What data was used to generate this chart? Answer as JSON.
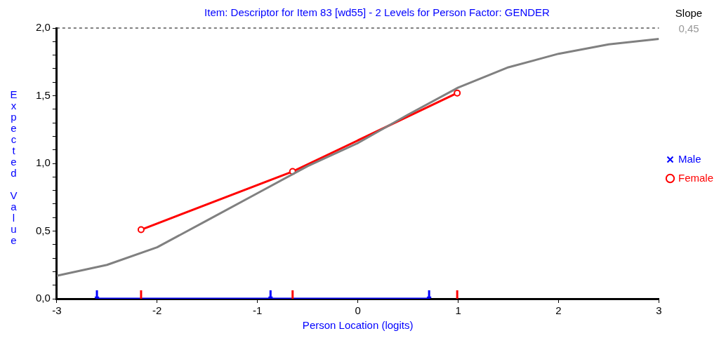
{
  "chart_data": {
    "type": "line",
    "title": "Item: Descriptor for Item 83 [wd55] - 2 Levels for Person Factor: GENDER",
    "xlabel": "Person Location (logits)",
    "ylabel": "Expected Value",
    "annotations": [
      "Slope",
      "0,45"
    ],
    "xlim": [
      -3,
      3
    ],
    "xticks": [
      -3,
      -2,
      -1,
      0,
      1,
      2,
      3
    ],
    "ylim": [
      0,
      2
    ],
    "yticks": [
      {
        "value": 0,
        "label": "0,0"
      },
      {
        "value": 0.1,
        "label": null
      },
      {
        "value": 0.2,
        "label": null
      },
      {
        "value": 0.3,
        "label": null
      },
      {
        "value": 0.4,
        "label": null
      },
      {
        "value": 0.5,
        "label": "0,5"
      },
      {
        "value": 0.6,
        "label": null
      },
      {
        "value": 0.7,
        "label": null
      },
      {
        "value": 0.8,
        "label": null
      },
      {
        "value": 0.9,
        "label": null
      },
      {
        "value": 1,
        "label": "1,0"
      },
      {
        "value": 1.1,
        "label": null
      },
      {
        "value": 1.2,
        "label": null
      },
      {
        "value": 1.3,
        "label": null
      },
      {
        "value": 1.4,
        "label": null
      },
      {
        "value": 1.5,
        "label": "1,5"
      },
      {
        "value": 1.6,
        "label": null
      },
      {
        "value": 1.7,
        "label": null
      },
      {
        "value": 1.8,
        "label": null
      },
      {
        "value": 1.9,
        "label": null
      },
      {
        "value": 2,
        "label": "2,0"
      }
    ],
    "grid": false,
    "legend": "right",
    "ref_lines": [
      {
        "axis": "y",
        "value": 2,
        "color": "#000000",
        "line_style": "dashed"
      }
    ],
    "series": [
      {
        "color": "#808080",
        "marker": "none",
        "x": [
          -3,
          -2.5,
          -2,
          -1.5,
          -1,
          -0.5,
          0,
          0.5,
          1,
          1.5,
          2,
          2.5,
          3
        ],
        "values": [
          0.17,
          0.25,
          0.38,
          0.58,
          0.78,
          0.98,
          1.15,
          1.36,
          1.56,
          1.71,
          1.81,
          1.88,
          1.92
        ]
      },
      {
        "name": "Male",
        "color": "#0000ff",
        "marker": "cross",
        "x": [
          -2.6,
          -0.87,
          0.71
        ],
        "values": [
          0,
          0,
          0
        ]
      },
      {
        "name": "Female",
        "color": "#ff0000",
        "marker": "circle",
        "x": [
          -2.16,
          -0.65,
          0.99
        ],
        "values": [
          0.51,
          0.94,
          1.52
        ]
      }
    ]
  }
}
